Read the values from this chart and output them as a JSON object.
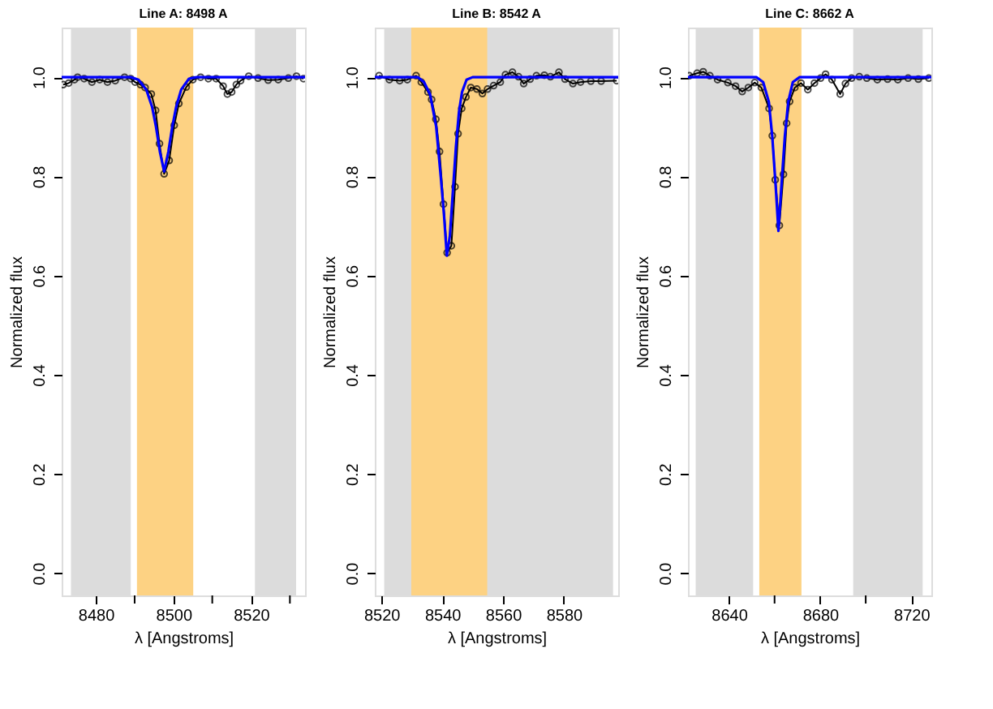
{
  "chart_data": [
    {
      "type": "line",
      "title": "Line A: 8498 A",
      "xlabel": "λ [Angstroms]",
      "ylabel": "Normalized flux",
      "xlim": [
        8471.2,
        8533.9
      ],
      "xticks": [
        8480,
        {
          "value": 8490,
          "label": null
        },
        8500,
        {
          "value": 8510,
          "label": null
        },
        8520,
        {
          "value": 8530,
          "label": null
        }
      ],
      "ylim": [
        -0.045,
        1.1
      ],
      "yticks": [
        {
          "value": 0,
          "label": "0.0"
        },
        {
          "value": 0.2,
          "label": "0.2"
        },
        {
          "value": 0.4,
          "label": "0.4"
        },
        {
          "value": 0.6,
          "label": "0.6"
        },
        {
          "value": 0.8,
          "label": "0.8"
        },
        {
          "value": 1,
          "label": "1.0"
        }
      ],
      "grid": false,
      "line_style": "solid",
      "bands": [
        {
          "axis": "x",
          "from": 8473.6,
          "to": 8489,
          "color": "#dcdcdc"
        },
        {
          "axis": "x",
          "from": 8490.6,
          "to": 8505.1,
          "color": "#fdd283"
        },
        {
          "axis": "x",
          "from": 8521,
          "to": 8531.6,
          "color": "#dcdcdc"
        }
      ],
      "series": [
        {
          "color": "#000000",
          "marker": "circle",
          "x": [
            8471.6,
            8473.0,
            8474.5,
            8475.3,
            8477,
            8479,
            8481,
            8483,
            8485,
            8487.4,
            8489,
            8490.1,
            8491.5,
            8492.7,
            8494.3,
            8495.4,
            8496.4,
            8497.6,
            8498.9,
            8500.2,
            8501.4,
            8503.3,
            8505,
            8507,
            8509,
            8511,
            8512.8,
            8513.9,
            8515,
            8516.2,
            8517.3,
            8519.4,
            8521.8,
            8524.4,
            8527,
            8529.6,
            8531.7,
            8533.5
          ],
          "values": [
            0.985,
            0.988,
            0.995,
            1.0,
            0.997,
            0.99,
            0.995,
            0.99,
            0.993,
            1.0,
            0.997,
            0.99,
            0.985,
            0.979,
            0.966,
            0.933,
            0.866,
            0.805,
            0.832,
            0.903,
            0.947,
            0.98,
            0.995,
            1.0,
            0.997,
            0.997,
            0.982,
            0.966,
            0.97,
            0.985,
            0.993,
            1.002,
            0.998,
            0.994,
            0.995,
            0.998,
            1.002,
            0.997
          ]
        },
        {
          "color": "#0000ff",
          "marker": "none",
          "x": [
            8471.2,
            8489,
            8491,
            8493,
            8494.5,
            8495.5,
            8496.5,
            8497.6,
            8498.7,
            8499.7,
            8500.7,
            8502,
            8504,
            8506,
            8533.9
          ],
          "values": [
            1.0,
            1.0,
            0.995,
            0.975,
            0.94,
            0.9,
            0.85,
            0.81,
            0.85,
            0.9,
            0.94,
            0.975,
            0.997,
            1.0,
            1.0
          ]
        }
      ]
    },
    {
      "type": "line",
      "title": "Line B: 8542 A",
      "xlabel": "λ [Angstroms]",
      "ylabel": "Normalized flux",
      "xlim": [
        8517.8,
        8597.9
      ],
      "xticks": [
        8520,
        8540,
        8560,
        8580
      ],
      "ylim": [
        -0.045,
        1.1
      ],
      "yticks": [
        {
          "value": 0,
          "label": "0.0"
        },
        {
          "value": 0.2,
          "label": "0.2"
        },
        {
          "value": 0.4,
          "label": "0.4"
        },
        {
          "value": 0.6,
          "label": "0.6"
        },
        {
          "value": 0.8,
          "label": "0.8"
        },
        {
          "value": 1,
          "label": "1.0"
        }
      ],
      "grid": false,
      "line_style": "solid",
      "bands": [
        {
          "axis": "x",
          "from": 8520.9,
          "to": 8596.2,
          "color": "#dcdcdc"
        },
        {
          "axis": "x",
          "from": 8529.8,
          "to": 8554.8,
          "color": "#fdd283"
        }
      ],
      "series": [
        {
          "color": "#000000",
          "marker": "circle",
          "x": [
            8519.2,
            8522.6,
            8526,
            8528.5,
            8531.4,
            8533.1,
            8535.3,
            8536.5,
            8537.9,
            8539.1,
            8540.4,
            8541.6,
            8543,
            8544.2,
            8545.2,
            8546.4,
            8547.8,
            8549.4,
            8551.4,
            8553.2,
            8554.9,
            8556.9,
            8559.1,
            8560.8,
            8563.1,
            8565.1,
            8566.8,
            8568.9,
            8571,
            8573.6,
            8575.6,
            8578.4,
            8580.4,
            8583,
            8585.5,
            8588.9,
            8592.3,
            8597.4
          ],
          "values": [
            1.003,
            0.995,
            0.993,
            0.995,
            1.003,
            0.99,
            0.97,
            0.955,
            0.915,
            0.85,
            0.744,
            0.646,
            0.66,
            0.779,
            0.886,
            0.937,
            0.96,
            0.979,
            0.976,
            0.967,
            0.976,
            0.983,
            0.99,
            1.005,
            1.01,
            1.001,
            0.987,
            0.996,
            1.003,
            1.004,
            1.001,
            1.01,
            0.996,
            0.987,
            0.99,
            0.992,
            0.992,
            0.993
          ]
        },
        {
          "color": "#0000ff",
          "marker": "none",
          "x": [
            8517.8,
            8532,
            8534,
            8536,
            8538,
            8539.5,
            8540.6,
            8541.5,
            8542.5,
            8543.5,
            8544.5,
            8545.5,
            8546.5,
            8548,
            8550,
            8597.9
          ],
          "values": [
            1.0,
            1.0,
            0.99,
            0.965,
            0.9,
            0.8,
            0.72,
            0.64,
            0.68,
            0.77,
            0.86,
            0.93,
            0.97,
            0.995,
            1.0,
            1.0
          ]
        }
      ]
    },
    {
      "type": "line",
      "title": "Line C: 8662 A",
      "xlabel": "λ [Angstroms]",
      "ylabel": "Normalized flux",
      "xlim": [
        8622,
        8728.8
      ],
      "xticks": [
        8640,
        {
          "value": 8660,
          "label": null
        },
        8680,
        {
          "value": 8700,
          "label": null
        },
        8720
      ],
      "ylim": [
        -0.045,
        1.1
      ],
      "yticks": [
        {
          "value": 0,
          "label": "0.0"
        },
        {
          "value": 0.2,
          "label": "0.2"
        },
        {
          "value": 0.4,
          "label": "0.4"
        },
        {
          "value": 0.6,
          "label": "0.6"
        },
        {
          "value": 0.8,
          "label": "0.8"
        },
        {
          "value": 1,
          "label": "1.0"
        }
      ],
      "grid": false,
      "line_style": "solid",
      "bands": [
        {
          "axis": "x",
          "from": 8625.4,
          "to": 8650.6,
          "color": "#dcdcdc"
        },
        {
          "axis": "x",
          "from": 8653.3,
          "to": 8671.8,
          "color": "#fdd283"
        },
        {
          "axis": "x",
          "from": 8694.5,
          "to": 8725,
          "color": "#dcdcdc"
        }
      ],
      "series": [
        {
          "color": "#000000",
          "marker": "circle",
          "x": [
            8622.6,
            8626,
            8628.7,
            8631.6,
            8635,
            8639.5,
            8642.9,
            8645.8,
            8648.5,
            8651.3,
            8654.2,
            8657.6,
            8659,
            8660.3,
            8662.1,
            8663.9,
            8665.3,
            8666.6,
            8668.9,
            8671.6,
            8674.6,
            8677.5,
            8680.2,
            8682.4,
            8685.2,
            8688.8,
            8691.1,
            8693.8,
            8697.2,
            8700.5,
            8705.1,
            8709.6,
            8714.1,
            8718.6,
            8723.1,
            8727.7
          ],
          "values": [
            1.003,
            1.008,
            1.011,
            1.003,
            0.995,
            0.989,
            0.982,
            0.971,
            0.979,
            0.989,
            0.979,
            0.937,
            0.882,
            0.793,
            0.701,
            0.804,
            0.907,
            0.951,
            0.979,
            0.988,
            0.975,
            0.988,
            0.998,
            1.006,
            0.995,
            0.966,
            0.987,
            0.998,
            1.001,
            0.998,
            0.995,
            0.996,
            0.995,
            0.998,
            0.996,
            0.998
          ]
        },
        {
          "color": "#0000ff",
          "marker": "none",
          "x": [
            8622,
            8652,
            8655,
            8657.5,
            8659,
            8660.5,
            8661.7,
            8663,
            8664.5,
            8666,
            8668,
            8671,
            8728.8
          ],
          "values": [
            1.0,
            1.0,
            0.99,
            0.95,
            0.88,
            0.78,
            0.69,
            0.78,
            0.88,
            0.95,
            0.99,
            1.0,
            1.0
          ]
        }
      ]
    }
  ]
}
